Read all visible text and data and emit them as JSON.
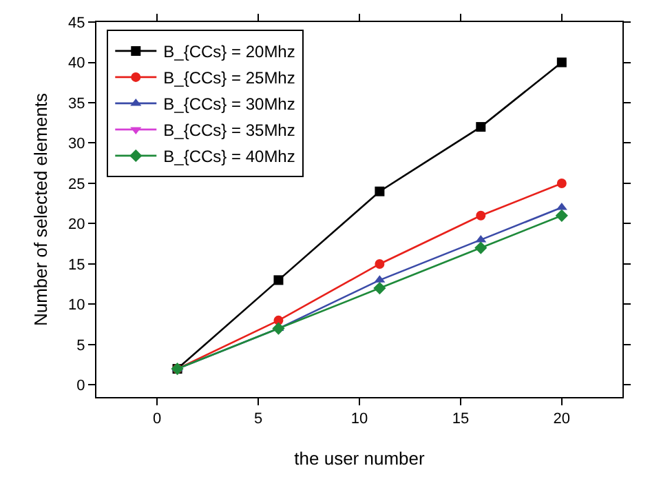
{
  "chart_data": {
    "type": "line",
    "xlabel": "the user number",
    "ylabel": "Number of selected elements",
    "x": [
      1,
      6,
      11,
      16,
      20
    ],
    "series": [
      {
        "name": "B_{CCs} = 20Mhz",
        "color": "#000000",
        "marker": "square",
        "values": [
          2,
          13,
          24,
          32,
          40
        ]
      },
      {
        "name": "B_{CCs} = 25Mhz",
        "color": "#e8211b",
        "marker": "circle",
        "values": [
          2,
          8,
          15,
          21,
          25
        ]
      },
      {
        "name": "B_{CCs} = 30Mhz",
        "color": "#3b4ba8",
        "marker": "triangle",
        "values": [
          2,
          7,
          13,
          18,
          22
        ]
      },
      {
        "name": "B_{CCs} = 35Mhz",
        "color": "#d63fd6",
        "marker": "triangle",
        "values": [
          null,
          null,
          null,
          null,
          null
        ]
      },
      {
        "name": "B_{CCs} = 40Mhz",
        "color": "#1e8a3a",
        "marker": "diamond",
        "values": [
          2,
          7,
          12,
          17,
          21
        ]
      }
    ],
    "xlim": [
      -3,
      23
    ],
    "xticks": [
      0,
      5,
      10,
      15,
      20
    ],
    "ylim": [
      -1.5,
      45
    ],
    "yticks": [
      0,
      5,
      10,
      15,
      20,
      25,
      30,
      35,
      40,
      45
    ],
    "grid": false,
    "legend": "top left"
  }
}
